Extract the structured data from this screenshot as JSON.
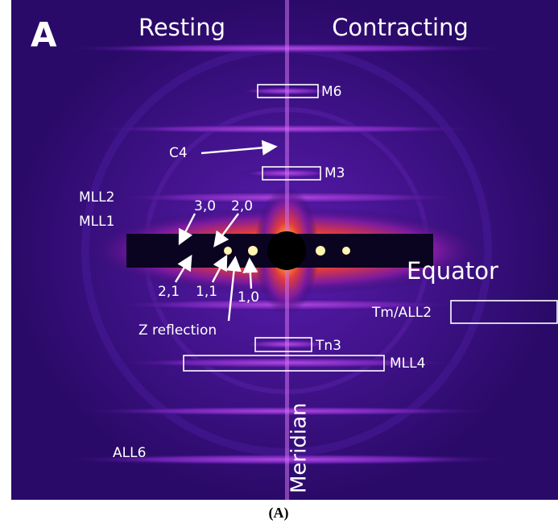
{
  "panel": "A",
  "headers": {
    "left": "Resting",
    "right": "Contracting"
  },
  "labels": {
    "m6": "M6",
    "c4": "C4",
    "m3": "M3",
    "mll2": "MLL2",
    "mll1": "MLL1",
    "r30": "3,0",
    "r20": "2,0",
    "r21": "2,1",
    "r11": "1,1",
    "r10": "1,0",
    "equator": "Equator",
    "z": "Z reflection",
    "tm": "Tm/ALL2",
    "tn3": "Tn3",
    "mll4": "MLL4",
    "meridian": "Meridian",
    "all6": "ALL6"
  },
  "caption": "(A)"
}
